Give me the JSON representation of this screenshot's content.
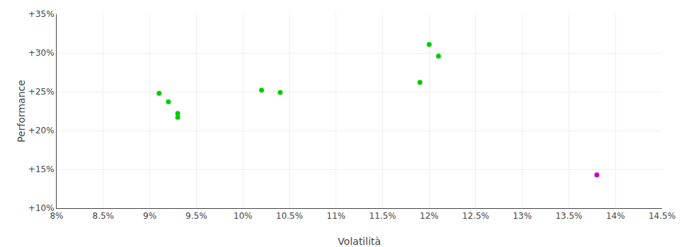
{
  "chart_data": {
    "type": "scatter",
    "x_label": "Volatilità",
    "y_label": "Performance",
    "xlim": [
      0.08,
      0.145
    ],
    "ylim": [
      0.1,
      0.35
    ],
    "xticks": [
      {
        "value": 0.08,
        "label": "8%"
      },
      {
        "value": 0.085,
        "label": "8.5%"
      },
      {
        "value": 0.09,
        "label": "9%"
      },
      {
        "value": 0.095,
        "label": "9.5%"
      },
      {
        "value": 0.1,
        "label": "10%"
      },
      {
        "value": 0.105,
        "label": "10.5%"
      },
      {
        "value": 0.11,
        "label": "11%"
      },
      {
        "value": 0.115,
        "label": "11.5%"
      },
      {
        "value": 0.12,
        "label": "12%"
      },
      {
        "value": 0.125,
        "label": "12.5%"
      },
      {
        "value": 0.13,
        "label": "13%"
      },
      {
        "value": 0.135,
        "label": "13.5%"
      },
      {
        "value": 0.14,
        "label": "14%"
      },
      {
        "value": 0.145,
        "label": "14.5%"
      }
    ],
    "yticks": [
      {
        "value": 0.1,
        "label": "+10%"
      },
      {
        "value": 0.15,
        "label": "+15%"
      },
      {
        "value": 0.2,
        "label": "+20%"
      },
      {
        "value": 0.25,
        "label": "+25%"
      },
      {
        "value": 0.3,
        "label": "+30%"
      },
      {
        "value": 0.35,
        "label": "+35%"
      }
    ],
    "grid": true,
    "series": [
      {
        "color": "#00cc00",
        "x": [
          0.091,
          0.092,
          0.093,
          0.093,
          0.102,
          0.104,
          0.119,
          0.12,
          0.121
        ],
        "values": [
          0.248,
          0.237,
          0.222,
          0.217,
          0.252,
          0.249,
          0.262,
          0.311,
          0.296
        ]
      },
      {
        "color": "#cc00cc",
        "x": [
          0.138
        ],
        "values": [
          0.143
        ]
      }
    ]
  }
}
